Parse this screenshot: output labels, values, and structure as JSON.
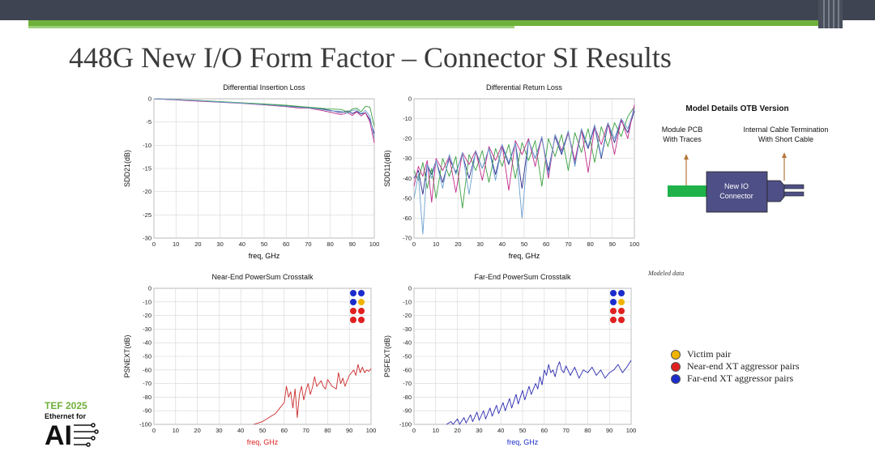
{
  "slide": {
    "title": "448G New I/O Form Factor – Connector SI Results",
    "modeled_note": "Modeled data"
  },
  "model_details": {
    "title": "Model Details OTB Version",
    "left_label_1": "Module PCB",
    "left_label_2": "With Traces",
    "right_label_1": "Internal Cable Termination",
    "right_label_2": "With Short Cable",
    "connector_label_1": "New IO",
    "connector_label_2": "Connector",
    "colors": {
      "pcb": "#1fb24a",
      "connector": "#4e4f86",
      "arrow": "#b5773a"
    }
  },
  "legend": {
    "items": [
      {
        "label": "Victim pair",
        "color": "#f0b400"
      },
      {
        "label": "Near-end XT aggressor pairs",
        "color": "#e02020"
      },
      {
        "label": "Far-end XT aggressor pairs",
        "color": "#1a2ccc"
      }
    ]
  },
  "pair_grid": {
    "rows": [
      [
        "#1a2ccc",
        "#1a2ccc"
      ],
      [
        "#1a2ccc",
        "#f0b400"
      ],
      [
        "#e02020",
        "#e02020"
      ],
      [
        "#e02020",
        "#e02020"
      ]
    ]
  },
  "badge": {
    "line1": "TEF 2025",
    "line2": "Ethernet for",
    "line3": "AI"
  },
  "chart_data": [
    {
      "type": "line",
      "title": "Differential Insertion Loss",
      "xlabel": "freq, GHz",
      "ylabel": "SDD21(dB)",
      "xlim": [
        0,
        100
      ],
      "ylim": [
        -30,
        0
      ],
      "xticks": [
        0,
        10,
        20,
        30,
        40,
        50,
        60,
        70,
        80,
        90,
        100
      ],
      "yticks": [
        0,
        -5,
        -10,
        -15,
        -20,
        -25,
        -30
      ],
      "grid": true,
      "xlabel_color": "#000000",
      "series": [
        {
          "color": "#2a2a8a",
          "x": [
            0,
            10,
            20,
            30,
            40,
            50,
            60,
            65,
            70,
            75,
            80,
            85,
            88,
            90,
            92,
            94,
            96,
            98,
            100
          ],
          "y": [
            0,
            -0.2,
            -0.4,
            -0.65,
            -0.9,
            -1.2,
            -1.55,
            -1.7,
            -1.9,
            -2.1,
            -2.5,
            -3.0,
            -2.6,
            -3.2,
            -2.7,
            -3.3,
            -3.0,
            -4.5,
            -7.5
          ]
        },
        {
          "color": "#3aa040",
          "x": [
            0,
            10,
            20,
            30,
            40,
            50,
            60,
            65,
            70,
            75,
            80,
            85,
            88,
            90,
            92,
            94,
            96,
            98,
            100
          ],
          "y": [
            0,
            -0.15,
            -0.35,
            -0.6,
            -0.85,
            -1.1,
            -1.4,
            -1.6,
            -1.8,
            -2.0,
            -2.2,
            -2.3,
            -2.9,
            -2.2,
            -2.0,
            -2.8,
            -1.6,
            -1.8,
            -6.0
          ]
        },
        {
          "color": "#c02a8a",
          "x": [
            0,
            10,
            20,
            30,
            40,
            50,
            60,
            65,
            70,
            75,
            80,
            85,
            88,
            90,
            92,
            94,
            96,
            98,
            100
          ],
          "y": [
            0,
            -0.25,
            -0.5,
            -0.75,
            -1.0,
            -1.3,
            -1.7,
            -1.95,
            -2.0,
            -2.4,
            -2.9,
            -3.4,
            -3.0,
            -3.6,
            -2.8,
            -3.7,
            -3.0,
            -5.0,
            -9.5
          ]
        },
        {
          "color": "#6aa0d0",
          "x": [
            0,
            10,
            20,
            30,
            40,
            50,
            60,
            65,
            70,
            75,
            80,
            85,
            88,
            90,
            92,
            94,
            96,
            98,
            100
          ],
          "y": [
            0,
            -0.2,
            -0.4,
            -0.7,
            -0.95,
            -1.25,
            -1.6,
            -1.8,
            -1.95,
            -2.2,
            -2.6,
            -2.7,
            -3.1,
            -2.5,
            -2.4,
            -3.2,
            -2.5,
            -3.8,
            -8.5
          ]
        }
      ]
    },
    {
      "type": "line",
      "title": "Differential Return Loss",
      "xlabel": "freq, GHz",
      "ylabel": "SDD11(dB)",
      "xlim": [
        0,
        100
      ],
      "ylim": [
        -70,
        0
      ],
      "xticks": [
        0,
        10,
        20,
        30,
        40,
        50,
        60,
        70,
        80,
        90,
        100
      ],
      "yticks": [
        0,
        -10,
        -20,
        -30,
        -40,
        -50,
        -60,
        -70
      ],
      "grid": true,
      "xlabel_color": "#000000",
      "series": [
        {
          "color": "#2a2a8a",
          "x": [
            0,
            2,
            4,
            6,
            8,
            10,
            13,
            16,
            19,
            22,
            25,
            28,
            31,
            34,
            37,
            40,
            43,
            46,
            49,
            52,
            55,
            58,
            61,
            64,
            67,
            70,
            73,
            76,
            79,
            82,
            85,
            88,
            91,
            94,
            97,
            100
          ],
          "y": [
            -40,
            -36,
            -48,
            -33,
            -38,
            -31,
            -42,
            -30,
            -37,
            -28,
            -40,
            -27,
            -35,
            -25,
            -38,
            -24,
            -33,
            -22,
            -45,
            -21,
            -30,
            -20,
            -36,
            -19,
            -28,
            -17,
            -33,
            -16,
            -25,
            -14,
            -30,
            -13,
            -22,
            -11,
            -17,
            -6
          ]
        },
        {
          "color": "#3aa040",
          "x": [
            0,
            2,
            4,
            6,
            8,
            10,
            13,
            16,
            19,
            22,
            25,
            28,
            31,
            34,
            37,
            40,
            43,
            46,
            49,
            52,
            55,
            58,
            61,
            64,
            67,
            70,
            73,
            76,
            79,
            82,
            85,
            88,
            91,
            94,
            97,
            100
          ],
          "y": [
            -36,
            -41,
            -32,
            -45,
            -35,
            -50,
            -30,
            -39,
            -29,
            -55,
            -28,
            -36,
            -26,
            -42,
            -25,
            -34,
            -23,
            -40,
            -22,
            -31,
            -21,
            -44,
            -20,
            -29,
            -18,
            -36,
            -17,
            -27,
            -15,
            -32,
            -14,
            -24,
            -12,
            -19,
            -9,
            -4
          ]
        },
        {
          "color": "#c02a8a",
          "x": [
            0,
            2,
            4,
            6,
            8,
            10,
            13,
            16,
            19,
            22,
            25,
            28,
            31,
            34,
            37,
            40,
            43,
            46,
            49,
            52,
            55,
            58,
            61,
            64,
            67,
            70,
            73,
            76,
            79,
            82,
            85,
            88,
            91,
            94,
            97,
            100
          ],
          "y": [
            -44,
            -34,
            -39,
            -31,
            -52,
            -30,
            -36,
            -29,
            -47,
            -27,
            -33,
            -26,
            -41,
            -24,
            -31,
            -23,
            -46,
            -21,
            -28,
            -20,
            -34,
            -19,
            -40,
            -18,
            -26,
            -17,
            -31,
            -15,
            -37,
            -14,
            -23,
            -12,
            -28,
            -10,
            -20,
            -3
          ]
        },
        {
          "color": "#6aa0d0",
          "x": [
            0,
            2,
            4,
            6,
            8,
            10,
            13,
            16,
            19,
            22,
            25,
            28,
            31,
            34,
            37,
            40,
            43,
            46,
            49,
            52,
            55,
            58,
            61,
            64,
            67,
            70,
            73,
            76,
            79,
            82,
            85,
            88,
            91,
            94,
            97,
            100
          ],
          "y": [
            -50,
            -38,
            -68,
            -33,
            -40,
            -31,
            -45,
            -28,
            -38,
            -27,
            -48,
            -26,
            -35,
            -25,
            -41,
            -23,
            -32,
            -22,
            -60,
            -21,
            -30,
            -19,
            -38,
            -18,
            -27,
            -16,
            -34,
            -15,
            -24,
            -13,
            -29,
            -12,
            -20,
            -10,
            -15,
            -5
          ]
        }
      ]
    },
    {
      "type": "line",
      "title": "Near-End PowerSum Crosstalk",
      "xlabel": "freq, GHz",
      "ylabel": "PSNEXT(dB)",
      "xlim": [
        0,
        100
      ],
      "ylim": [
        -100,
        0
      ],
      "xticks": [
        0,
        10,
        20,
        30,
        40,
        50,
        60,
        70,
        80,
        90,
        100
      ],
      "yticks": [
        0,
        -10,
        -20,
        -30,
        -40,
        -50,
        -60,
        -70,
        -80,
        -90,
        -100
      ],
      "grid": true,
      "xlabel_color": "#e02020",
      "series": [
        {
          "color": "#cc2a2a",
          "x": [
            46,
            48,
            50,
            52,
            54,
            56,
            58,
            60,
            61,
            62,
            63,
            64,
            65,
            66,
            67,
            68,
            69,
            70,
            71,
            72,
            73,
            74,
            75,
            76,
            77,
            78,
            79,
            80,
            82,
            84,
            85,
            86,
            87,
            88,
            89,
            90,
            92,
            93,
            94,
            95,
            96,
            97,
            98,
            99,
            100
          ],
          "y": [
            -100,
            -99,
            -98,
            -96,
            -94,
            -92,
            -88,
            -84,
            -72,
            -80,
            -76,
            -88,
            -74,
            -95,
            -78,
            -72,
            -82,
            -75,
            -70,
            -78,
            -73,
            -65,
            -72,
            -70,
            -68,
            -72,
            -74,
            -67,
            -72,
            -74,
            -62,
            -70,
            -66,
            -72,
            -68,
            -64,
            -60,
            -64,
            -56,
            -62,
            -58,
            -62,
            -60,
            -61,
            -59
          ]
        }
      ]
    },
    {
      "type": "line",
      "title": "Far-End PowerSum Crosstalk",
      "xlabel": "freq, GHz",
      "ylabel": "PSFEXT(dB)",
      "xlim": [
        0,
        100
      ],
      "ylim": [
        -100,
        0
      ],
      "xticks": [
        0,
        10,
        20,
        30,
        40,
        50,
        60,
        70,
        80,
        90,
        100
      ],
      "yticks": [
        0,
        -10,
        -20,
        -30,
        -40,
        -50,
        -60,
        -70,
        -80,
        -90,
        -100
      ],
      "grid": true,
      "xlabel_color": "#1a2ccc",
      "series": [
        {
          "color": "#2a2ab0",
          "x": [
            15,
            17,
            18,
            20,
            21,
            23,
            24,
            26,
            27,
            29,
            30,
            32,
            33,
            35,
            36,
            38,
            39,
            41,
            42,
            44,
            45,
            47,
            48,
            50,
            51,
            53,
            54,
            56,
            57,
            58,
            59,
            60,
            61,
            62,
            63,
            64,
            65,
            66,
            67,
            68,
            69,
            70,
            72,
            74,
            76,
            78,
            80,
            82,
            84,
            86,
            88,
            90,
            92,
            94,
            96,
            98,
            100
          ],
          "y": [
            -100,
            -98,
            -100,
            -96,
            -100,
            -95,
            -99,
            -93,
            -98,
            -91,
            -97,
            -90,
            -96,
            -88,
            -94,
            -86,
            -92,
            -84,
            -90,
            -81,
            -88,
            -78,
            -85,
            -75,
            -82,
            -72,
            -78,
            -70,
            -74,
            -65,
            -71,
            -60,
            -64,
            -56,
            -62,
            -60,
            -65,
            -58,
            -54,
            -60,
            -62,
            -57,
            -64,
            -58,
            -66,
            -60,
            -62,
            -58,
            -64,
            -60,
            -66,
            -62,
            -60,
            -56,
            -62,
            -58,
            -53
          ]
        }
      ]
    }
  ]
}
